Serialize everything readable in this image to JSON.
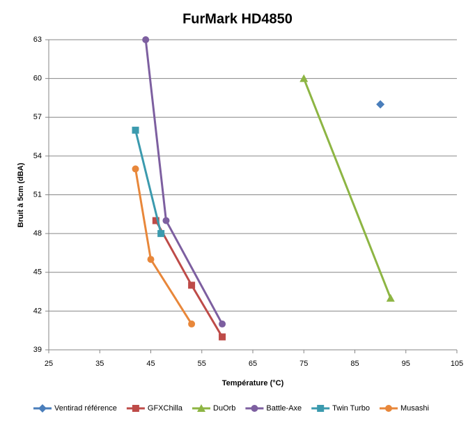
{
  "chart_data": {
    "type": "scatter",
    "title": "FurMark HD4850",
    "x_label": "Température (°C)",
    "y_label": "Bruit à 5cm (dBA)",
    "xlim": [
      25,
      105
    ],
    "xticks": [
      25,
      35,
      45,
      55,
      65,
      75,
      85,
      95,
      105
    ],
    "ylim": [
      39,
      63
    ],
    "yticks": [
      39,
      42,
      45,
      48,
      51,
      54,
      57,
      60,
      63
    ],
    "grid": true,
    "legend": "bottom",
    "series": [
      {
        "name": "Ventirad référence",
        "color": "#4a7ebb",
        "marker": "diamond",
        "x": [
          90
        ],
        "values": [
          58
        ]
      },
      {
        "name": "GFXChilla",
        "color": "#be4b48",
        "marker": "square",
        "x": [
          46,
          53,
          59
        ],
        "values": [
          49,
          44,
          40
        ]
      },
      {
        "name": "DuOrb",
        "color": "#8db543",
        "marker": "triangle",
        "x": [
          75,
          92
        ],
        "values": [
          60,
          43
        ]
      },
      {
        "name": "Battle-Axe",
        "color": "#7d5fa0",
        "marker": "circle",
        "x": [
          44,
          48,
          59
        ],
        "values": [
          63,
          49,
          41
        ]
      },
      {
        "name": "Twin Turbo",
        "color": "#3b9aae",
        "marker": "square",
        "x": [
          42,
          47
        ],
        "values": [
          56,
          48
        ]
      },
      {
        "name": "Musashi",
        "color": "#e8873a",
        "marker": "circle",
        "x": [
          42,
          45,
          53
        ],
        "values": [
          53,
          46,
          41
        ]
      }
    ]
  }
}
